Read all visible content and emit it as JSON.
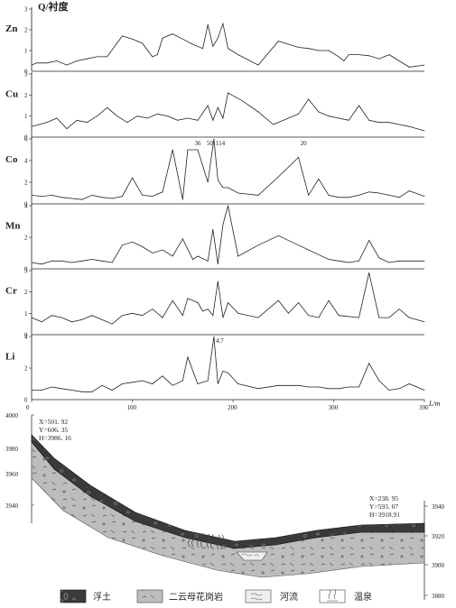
{
  "chart_data": {
    "type": "line",
    "ylabel": "Q/衬度",
    "xlabel": "L/m",
    "xlim": [
      0,
      390
    ],
    "x_ticks": [
      "0",
      "100",
      "200",
      "300",
      "390"
    ],
    "panels": [
      {
        "name": "Zn",
        "ylim": [
          0,
          3
        ],
        "y_ticks": [
          "1",
          "2",
          "3"
        ],
        "x": [
          0,
          5,
          15,
          25,
          35,
          45,
          55,
          65,
          75,
          90,
          100,
          110,
          120,
          125,
          130,
          140,
          150,
          160,
          170,
          175,
          180,
          185,
          190,
          195,
          205,
          225,
          245,
          265,
          275,
          285,
          295,
          305,
          310,
          315,
          325,
          335,
          345,
          355,
          365,
          375,
          390
        ],
        "values": [
          0.3,
          0.4,
          0.4,
          0.5,
          0.3,
          0.5,
          0.6,
          0.7,
          0.7,
          1.7,
          1.55,
          1.35,
          0.7,
          0.8,
          1.6,
          1.8,
          1.55,
          1.3,
          1.1,
          2.25,
          1.2,
          1.6,
          2.3,
          1.1,
          0.8,
          0.3,
          1.45,
          1.15,
          1.1,
          1.0,
          1.0,
          0.7,
          0.5,
          0.8,
          0.8,
          0.75,
          0.6,
          0.8,
          0.5,
          0.2,
          0.3
        ]
      },
      {
        "name": "Cu",
        "ylim": [
          0,
          3
        ],
        "y_ticks": [
          "1",
          "2",
          "3"
        ],
        "x": [
          0,
          15,
          25,
          35,
          45,
          55,
          65,
          75,
          85,
          95,
          105,
          115,
          125,
          135,
          145,
          155,
          165,
          175,
          180,
          185,
          190,
          195,
          210,
          225,
          240,
          265,
          275,
          285,
          295,
          305,
          315,
          325,
          335,
          345,
          355,
          365,
          375,
          390
        ],
        "values": [
          0.5,
          0.7,
          0.9,
          0.4,
          0.8,
          0.7,
          1.0,
          1.4,
          1.0,
          0.7,
          1.0,
          0.9,
          1.1,
          1.0,
          0.8,
          0.9,
          0.8,
          1.5,
          0.8,
          1.4,
          0.9,
          2.1,
          1.7,
          1.2,
          0.6,
          1.1,
          1.8,
          1.2,
          1.0,
          0.9,
          0.8,
          1.5,
          0.8,
          0.7,
          0.7,
          0.6,
          0.5,
          0.3
        ]
      },
      {
        "name": "Co",
        "ylim": [
          0,
          6
        ],
        "y_ticks": [
          "2",
          "4",
          "6"
        ],
        "annotations": [
          {
            "x": 160,
            "label": "36"
          },
          {
            "x": 172,
            "label": "50"
          },
          {
            "x": 181,
            "label": "114"
          },
          {
            "x": 265,
            "label": "20"
          }
        ],
        "x": [
          0,
          10,
          20,
          30,
          40,
          50,
          60,
          70,
          80,
          90,
          100,
          110,
          120,
          130,
          140,
          150,
          155,
          165,
          175,
          181,
          185,
          190,
          195,
          205,
          225,
          245,
          265,
          275,
          285,
          295,
          305,
          315,
          325,
          335,
          345,
          355,
          365,
          375,
          390
        ],
        "values": [
          0.8,
          0.7,
          0.8,
          0.6,
          0.5,
          0.4,
          0.8,
          0.6,
          0.5,
          0.7,
          2.4,
          0.8,
          0.7,
          1.1,
          5.0,
          0.4,
          5.0,
          5.0,
          2.0,
          6.0,
          2.2,
          1.5,
          1.5,
          1.0,
          0.8,
          2.5,
          4.3,
          0.8,
          2.3,
          0.8,
          0.6,
          0.6,
          0.8,
          1.1,
          1.0,
          0.8,
          0.6,
          1.2,
          0.7
        ]
      },
      {
        "name": "Mn",
        "ylim": [
          0,
          4
        ],
        "y_ticks": [
          "2",
          "4"
        ],
        "x": [
          0,
          10,
          20,
          30,
          40,
          50,
          60,
          70,
          80,
          90,
          100,
          110,
          120,
          130,
          140,
          150,
          160,
          165,
          175,
          180,
          185,
          190,
          195,
          205,
          225,
          245,
          265,
          275,
          285,
          295,
          305,
          315,
          325,
          335,
          345,
          355,
          365,
          375,
          390
        ],
        "values": [
          0.4,
          0.3,
          0.5,
          0.5,
          0.4,
          0.5,
          0.6,
          0.5,
          0.4,
          1.5,
          1.7,
          1.4,
          1.0,
          1.2,
          0.8,
          1.9,
          0.6,
          0.8,
          0.5,
          2.5,
          0.3,
          2.8,
          4.0,
          0.8,
          1.5,
          2.1,
          1.5,
          1.2,
          0.9,
          0.6,
          0.5,
          0.4,
          0.5,
          1.8,
          0.7,
          0.4,
          0.5,
          0.5,
          0.5
        ]
      },
      {
        "name": "Cr",
        "ylim": [
          0,
          3
        ],
        "y_ticks": [
          "1",
          "2",
          "3"
        ],
        "x": [
          0,
          10,
          20,
          30,
          40,
          50,
          60,
          70,
          80,
          90,
          100,
          110,
          120,
          130,
          140,
          150,
          155,
          165,
          170,
          175,
          180,
          185,
          190,
          195,
          205,
          225,
          245,
          255,
          265,
          275,
          285,
          295,
          305,
          325,
          335,
          345,
          355,
          365,
          375,
          390
        ],
        "values": [
          0.8,
          0.6,
          0.9,
          0.8,
          0.6,
          0.7,
          0.9,
          0.7,
          0.5,
          0.9,
          1.0,
          0.9,
          1.2,
          0.8,
          1.6,
          0.9,
          1.7,
          1.5,
          1.1,
          1.2,
          0.9,
          2.5,
          0.8,
          1.5,
          1.0,
          0.8,
          1.6,
          1.0,
          1.5,
          0.9,
          0.8,
          1.6,
          0.9,
          0.8,
          2.9,
          0.8,
          0.8,
          1.2,
          0.8,
          0.6
        ]
      },
      {
        "name": "Li",
        "ylim": [
          0,
          4
        ],
        "y_ticks": [
          "2",
          "4"
        ],
        "annotations": [
          {
            "x": 181,
            "label": "4.7"
          }
        ],
        "x": [
          0,
          10,
          20,
          30,
          40,
          50,
          60,
          70,
          80,
          90,
          100,
          110,
          120,
          130,
          140,
          150,
          155,
          165,
          175,
          181,
          185,
          190,
          195,
          205,
          225,
          245,
          265,
          275,
          285,
          295,
          305,
          315,
          325,
          335,
          345,
          355,
          365,
          375,
          390
        ],
        "values": [
          0.6,
          0.6,
          0.8,
          0.7,
          0.6,
          0.5,
          0.5,
          0.9,
          0.6,
          1.0,
          1.1,
          1.2,
          1.0,
          1.5,
          0.9,
          1.2,
          2.7,
          1.0,
          1.2,
          4.0,
          1.0,
          1.8,
          1.7,
          1.0,
          0.7,
          0.9,
          0.9,
          0.8,
          0.8,
          0.7,
          0.7,
          0.8,
          0.8,
          2.3,
          1.2,
          0.6,
          0.7,
          1.0,
          0.6
        ]
      }
    ],
    "profile": {
      "y_ticks_left": [
        "4000",
        "3980",
        "3960",
        "3940"
      ],
      "y_ticks_right": [
        "3940",
        "3920",
        "3900",
        "3880"
      ],
      "start_coords": [
        "X=501. 92",
        "Y=606. 35",
        "H=3986. 16"
      ],
      "end_coords": [
        "X=238. 95",
        "Y=593. 07",
        "H=3918.91"
      ]
    },
    "legend": [
      {
        "key": "fill",
        "label": "浮土"
      },
      {
        "key": "granite",
        "label": "二云母花岗岩"
      },
      {
        "key": "river",
        "label": "河流"
      },
      {
        "key": "spring",
        "label": "温泉"
      }
    ]
  }
}
